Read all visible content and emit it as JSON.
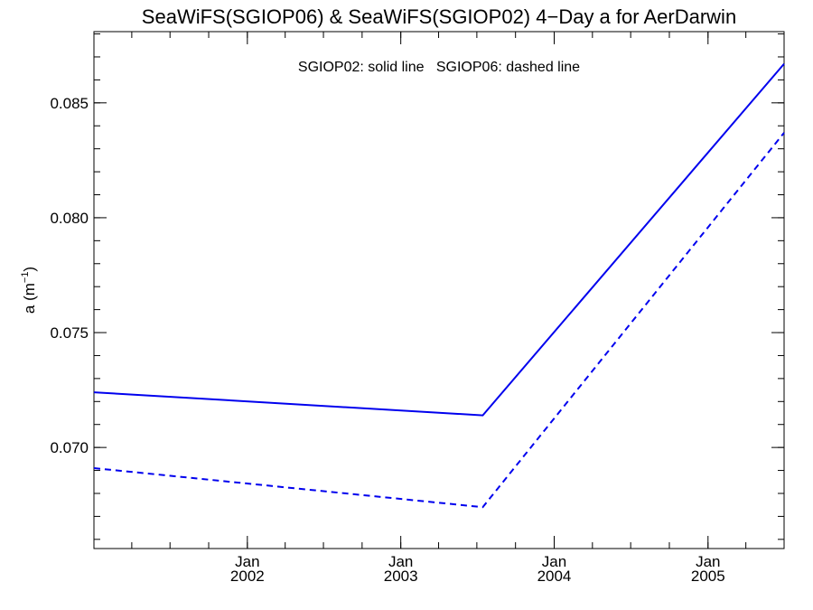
{
  "chart_data": {
    "type": "line",
    "title": "SeaWiFS(SGIOP06) & SeaWiFS(SGIOP02) 4−Day a for AerDarwin",
    "xlabel": "",
    "ylabel_base": "a (m",
    "ylabel_sup": "−1",
    "ylabel_close": ")",
    "legend_text": "SGIOP02: solid line   SGIOP06: dashed line",
    "legend_placement": "top-center",
    "grid": false,
    "xlim": [
      "2001-01-01",
      "2005-07-01"
    ],
    "ylim": [
      0.0656,
      0.0881
    ],
    "x_ticks": [
      {
        "date": "2002-01-01",
        "month": "Jan",
        "year": "2002"
      },
      {
        "date": "2003-01-01",
        "month": "Jan",
        "year": "2003"
      },
      {
        "date": "2004-01-01",
        "month": "Jan",
        "year": "2004"
      },
      {
        "date": "2005-01-01",
        "month": "Jan",
        "year": "2005"
      }
    ],
    "y_ticks": [
      "0.070",
      "0.075",
      "0.080",
      "0.085"
    ],
    "series": [
      {
        "name": "SGIOP02",
        "style": "solid",
        "color": "#0000ee",
        "x": [
          "2001-01-01",
          "2003-07-15",
          "2005-07-01"
        ],
        "y": [
          0.0724,
          0.0714,
          0.0867
        ]
      },
      {
        "name": "SGIOP06",
        "style": "dashed",
        "color": "#0000ee",
        "x": [
          "2001-01-01",
          "2003-07-15",
          "2005-07-01"
        ],
        "y": [
          0.0691,
          0.0674,
          0.0837
        ]
      }
    ]
  }
}
